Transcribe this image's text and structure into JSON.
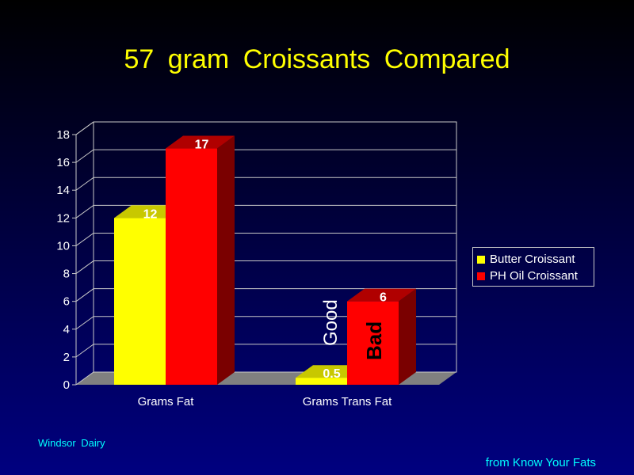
{
  "title": "57  gram  Croissants  Compared",
  "colors": {
    "butter": "#ffff00",
    "butter_side": "#9c9c00",
    "butter_top": "#c8c800",
    "oil": "#ff0000",
    "oil_side": "#7a0000",
    "oil_top": "#b00000",
    "gridline": "#c8c8c8",
    "floor": "#808080",
    "footer": "#00ffff"
  },
  "chart_data": {
    "type": "bar",
    "title": "57  gram  Croissants  Compared",
    "categories": [
      "Grams Fat",
      "Grams Trans Fat"
    ],
    "series": [
      {
        "name": "Butter Croissant",
        "values": [
          12,
          0.5
        ],
        "labels": [
          "12",
          "0.5"
        ]
      },
      {
        "name": "PH Oil Croissant",
        "values": [
          17,
          6
        ],
        "labels": [
          "17",
          "6"
        ]
      }
    ],
    "yticks": [
      "0",
      "2",
      "4",
      "6",
      "8",
      "10",
      "12",
      "14",
      "16",
      "18"
    ],
    "ylim": [
      0,
      18
    ],
    "grid": true,
    "legend_position": "right",
    "annotations": {
      "good": "Good",
      "bad": "Bad"
    }
  },
  "legend": {
    "items": [
      "Butter Croissant",
      "PH Oil Croissant"
    ]
  },
  "footer": {
    "left": "Windsor  Dairy",
    "right": "from Know Your Fats"
  }
}
